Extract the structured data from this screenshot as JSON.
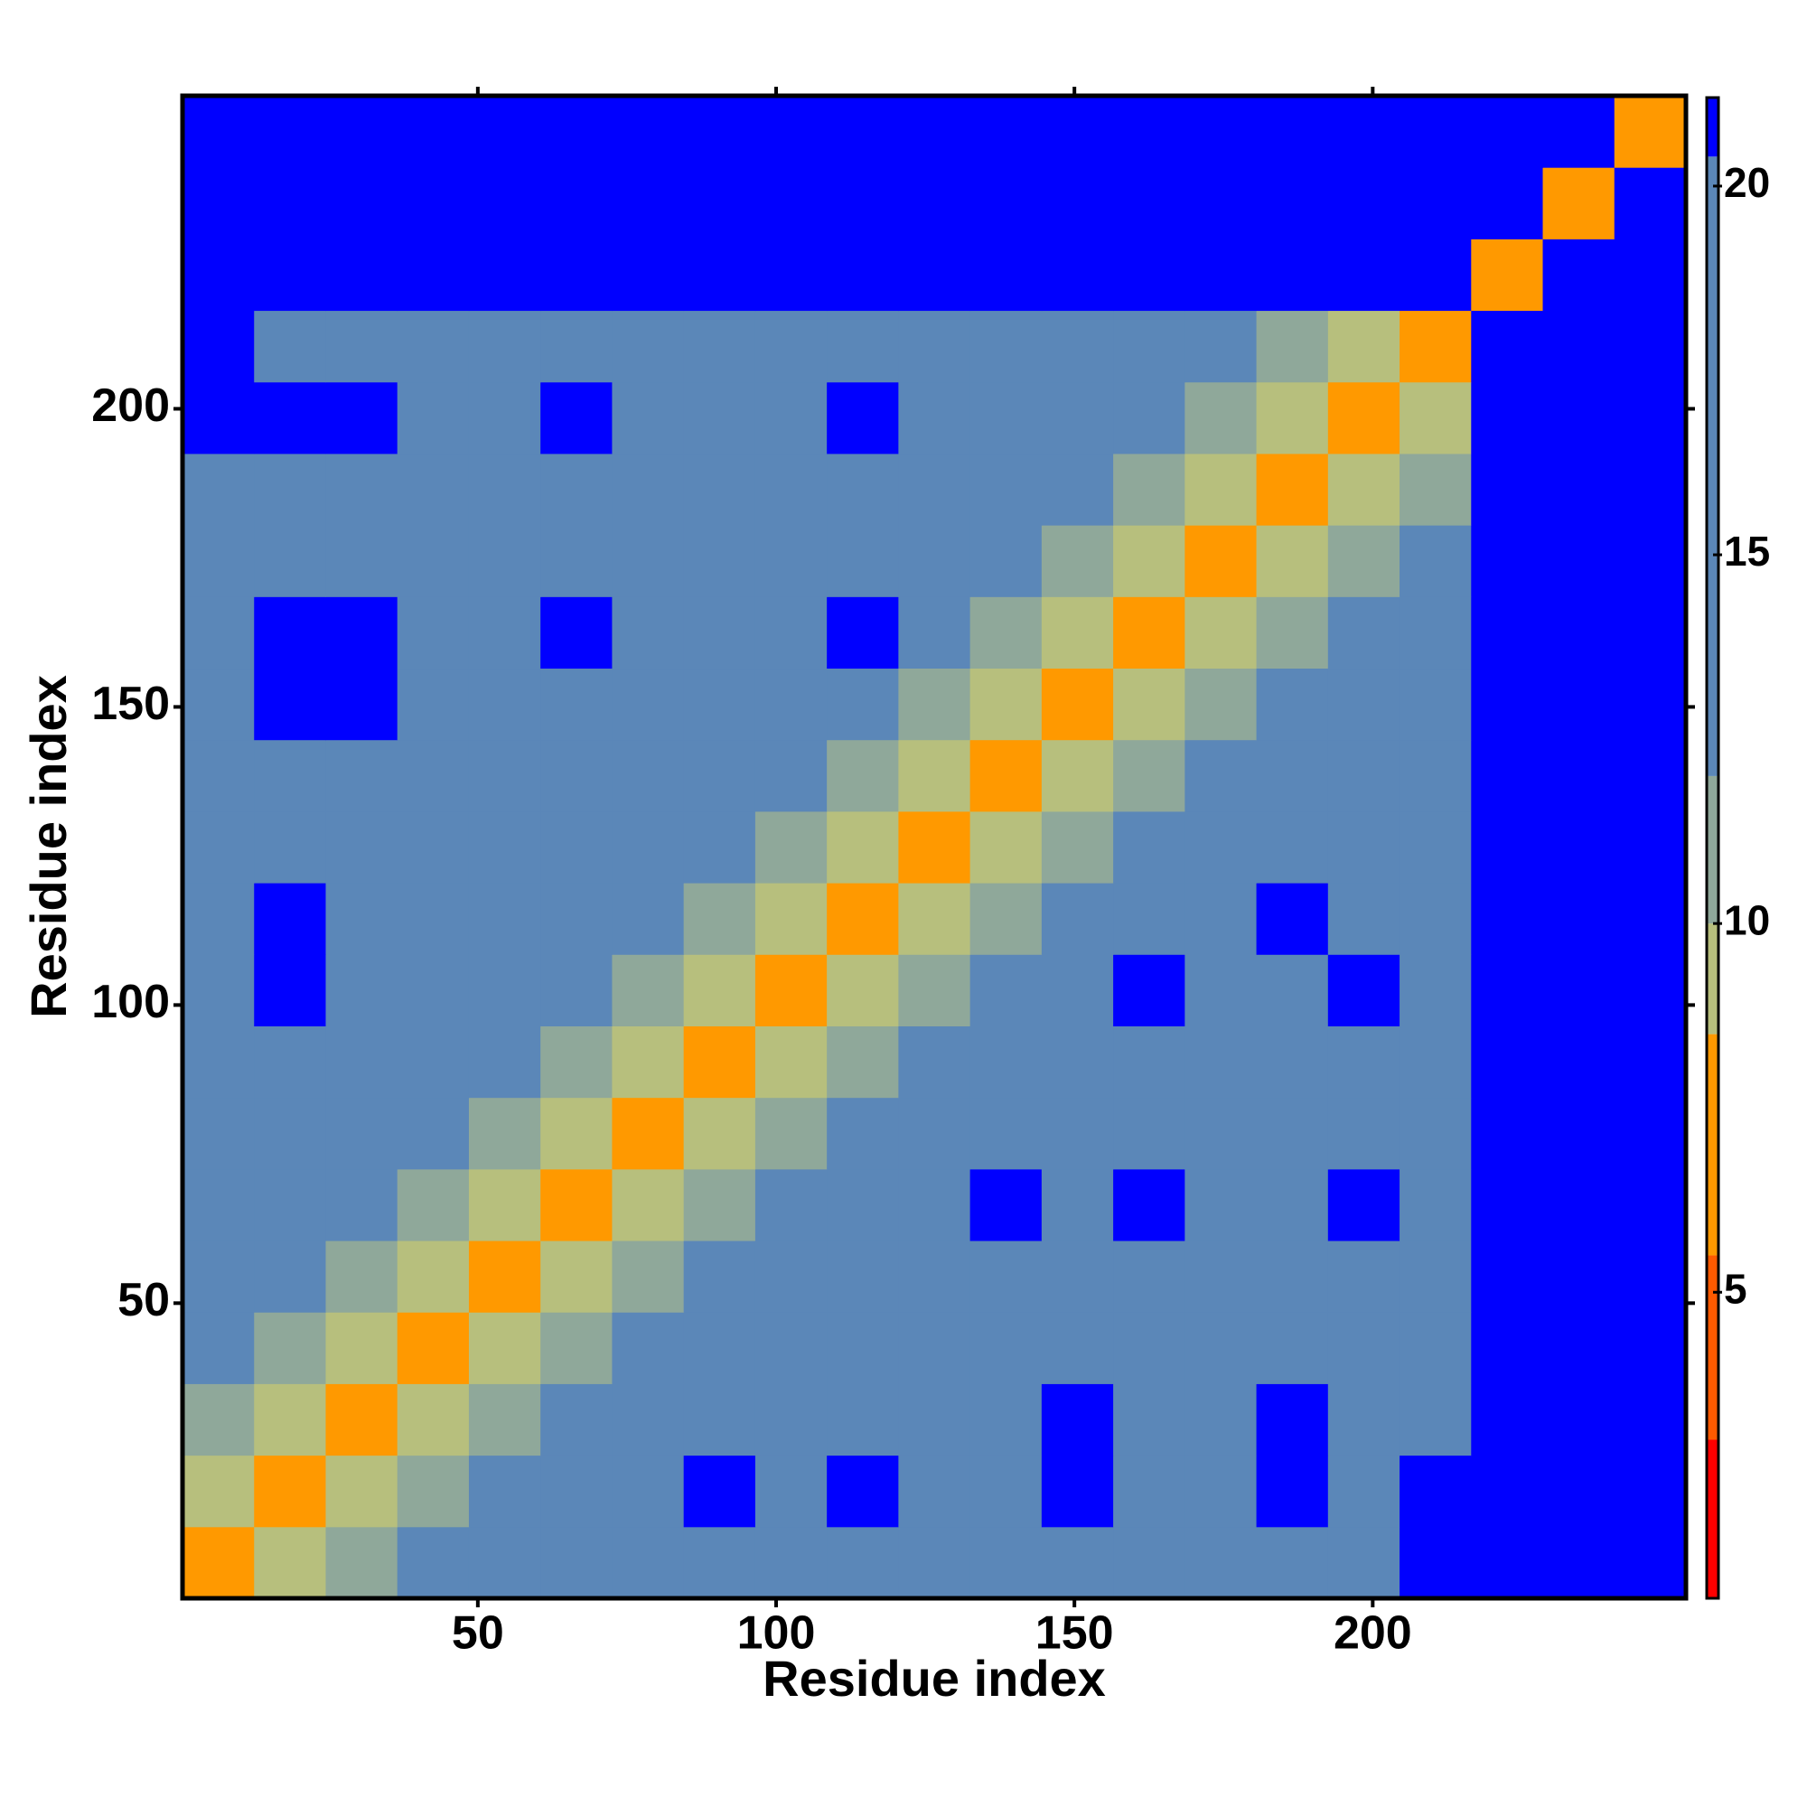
{
  "chart_data": {
    "type": "heatmap",
    "x_label": "Residue index",
    "y_label": "Residue index",
    "x_edges": [
      0.5,
      12.5,
      24.5,
      36.5,
      48.5,
      60.5,
      72.5,
      84.5,
      96.5,
      108.5,
      120.5,
      132.5,
      144.5,
      156.5,
      168.5,
      180.5,
      192.5,
      204.5,
      216.5,
      228.5,
      240.5,
      252.5
    ],
    "y_edges": [
      0.5,
      12.5,
      24.5,
      36.5,
      48.5,
      60.5,
      72.5,
      84.5,
      96.5,
      108.5,
      120.5,
      132.5,
      144.5,
      156.5,
      168.5,
      180.5,
      192.5,
      204.5,
      216.5,
      228.5,
      240.5,
      252.5
    ],
    "z": [
      [
        6,
        9,
        11,
        16,
        16,
        16,
        16,
        16,
        16,
        16,
        16,
        16,
        16,
        16,
        16,
        16,
        16,
        21,
        21,
        21,
        21
      ],
      [
        9,
        6,
        9,
        11,
        16,
        16,
        16,
        21,
        16,
        21,
        16,
        16,
        21,
        16,
        16,
        21,
        16,
        21,
        21,
        21,
        21
      ],
      [
        11,
        9,
        6,
        9,
        11,
        16,
        16,
        16,
        16,
        16,
        16,
        16,
        21,
        16,
        16,
        21,
        16,
        16,
        21,
        21,
        21
      ],
      [
        16,
        11,
        9,
        6,
        9,
        11,
        16,
        16,
        16,
        16,
        16,
        16,
        16,
        16,
        16,
        16,
        16,
        16,
        21,
        21,
        21
      ],
      [
        16,
        16,
        11,
        9,
        6,
        9,
        11,
        16,
        16,
        16,
        16,
        16,
        16,
        16,
        16,
        16,
        16,
        16,
        21,
        21,
        21
      ],
      [
        16,
        16,
        16,
        11,
        9,
        6,
        9,
        11,
        16,
        16,
        16,
        21,
        16,
        21,
        16,
        16,
        21,
        16,
        21,
        21,
        21
      ],
      [
        16,
        16,
        16,
        16,
        11,
        9,
        6,
        9,
        11,
        16,
        16,
        16,
        16,
        16,
        16,
        16,
        16,
        16,
        21,
        21,
        21
      ],
      [
        16,
        16,
        16,
        16,
        16,
        11,
        9,
        6,
        9,
        11,
        16,
        16,
        16,
        16,
        16,
        16,
        16,
        16,
        21,
        21,
        21
      ],
      [
        16,
        21,
        16,
        16,
        16,
        16,
        11,
        9,
        6,
        9,
        11,
        16,
        16,
        21,
        16,
        16,
        21,
        16,
        21,
        21,
        21
      ],
      [
        16,
        21,
        16,
        16,
        16,
        16,
        16,
        11,
        9,
        6,
        9,
        11,
        16,
        16,
        16,
        21,
        16,
        16,
        21,
        21,
        21
      ],
      [
        16,
        16,
        16,
        16,
        16,
        16,
        16,
        16,
        11,
        9,
        6,
        9,
        11,
        16,
        16,
        16,
        16,
        16,
        21,
        21,
        21
      ],
      [
        16,
        16,
        16,
        16,
        16,
        16,
        16,
        16,
        16,
        11,
        9,
        6,
        9,
        11,
        16,
        16,
        16,
        16,
        21,
        21,
        21
      ],
      [
        16,
        21,
        21,
        16,
        16,
        16,
        16,
        16,
        16,
        16,
        11,
        9,
        6,
        9,
        11,
        16,
        16,
        16,
        21,
        21,
        21
      ],
      [
        16,
        21,
        21,
        16,
        16,
        21,
        16,
        16,
        16,
        21,
        16,
        11,
        9,
        6,
        9,
        11,
        16,
        16,
        21,
        21,
        21
      ],
      [
        16,
        16,
        16,
        16,
        16,
        16,
        16,
        16,
        16,
        16,
        16,
        16,
        11,
        9,
        6,
        9,
        11,
        16,
        21,
        21,
        21
      ],
      [
        16,
        16,
        16,
        16,
        16,
        16,
        16,
        16,
        16,
        16,
        16,
        16,
        16,
        11,
        9,
        6,
        9,
        11,
        21,
        21,
        21
      ],
      [
        21,
        21,
        21,
        16,
        16,
        21,
        16,
        16,
        16,
        21,
        16,
        16,
        16,
        16,
        11,
        9,
        6,
        9,
        21,
        21,
        21
      ],
      [
        21,
        16,
        16,
        16,
        16,
        16,
        16,
        16,
        16,
        16,
        16,
        16,
        16,
        16,
        16,
        11,
        9,
        6,
        21,
        21,
        21
      ],
      [
        21,
        21,
        21,
        21,
        21,
        21,
        21,
        21,
        21,
        21,
        21,
        21,
        21,
        21,
        21,
        21,
        21,
        21,
        8,
        21,
        21
      ],
      [
        21,
        21,
        21,
        21,
        21,
        21,
        21,
        21,
        21,
        21,
        21,
        21,
        21,
        21,
        21,
        21,
        21,
        21,
        21,
        8,
        21
      ],
      [
        21,
        21,
        21,
        21,
        21,
        21,
        21,
        21,
        21,
        21,
        21,
        21,
        21,
        21,
        21,
        21,
        21,
        21,
        21,
        21,
        8
      ]
    ],
    "xlim": [
      0.5,
      252.5
    ],
    "ylim": [
      0.5,
      252.5
    ],
    "xticks": [
      50,
      100,
      150,
      200
    ],
    "yticks": [
      50,
      100,
      150,
      200
    ],
    "zticks": [
      5,
      10,
      15,
      20
    ],
    "color_levels": [
      0.85,
      3,
      5.5,
      8.5,
      10,
      12,
      20.4,
      21.2
    ],
    "colors": [
      "#ff0000",
      "#ff5a00",
      "#ff9900",
      "#b7bf7d",
      "#8fa89a",
      "#5b87b8",
      "#0000ff"
    ]
  }
}
